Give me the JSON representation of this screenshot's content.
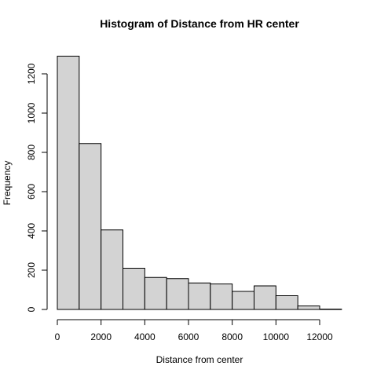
{
  "chart_data": {
    "type": "bar",
    "title": "Histogram of Distance from HR center",
    "xlabel": "Distance from center",
    "ylabel": "Frequency",
    "bin_edges": [
      0,
      1000,
      2000,
      3000,
      4000,
      5000,
      6000,
      7000,
      8000,
      9000,
      10000,
      11000,
      12000,
      13000
    ],
    "values": [
      1290,
      845,
      405,
      210,
      163,
      157,
      135,
      130,
      92,
      120,
      70,
      18,
      2
    ],
    "xlim": [
      0,
      13000
    ],
    "ylim": [
      0,
      1300
    ],
    "xticks": [
      0,
      2000,
      4000,
      6000,
      8000,
      10000,
      12000
    ],
    "yticks": [
      0,
      200,
      400,
      600,
      800,
      1000,
      1200
    ],
    "grid": false,
    "colors": {
      "bar_fill": "#d3d3d3",
      "bar_stroke": "#000000"
    }
  }
}
